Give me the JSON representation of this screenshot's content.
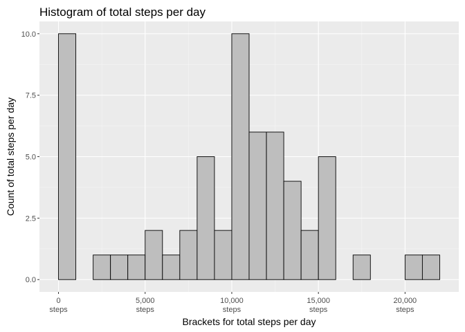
{
  "chart_data": {
    "type": "bar",
    "title": "Histogram of total steps per day",
    "xlabel": "Brackets for total steps per day",
    "ylabel": "Count of total steps per day",
    "bin_width": 1000,
    "bins": [
      {
        "start": 0,
        "end": 1000,
        "count": 10
      },
      {
        "start": 1000,
        "end": 2000,
        "count": 0
      },
      {
        "start": 2000,
        "end": 3000,
        "count": 1
      },
      {
        "start": 3000,
        "end": 4000,
        "count": 1
      },
      {
        "start": 4000,
        "end": 5000,
        "count": 1
      },
      {
        "start": 5000,
        "end": 6000,
        "count": 2
      },
      {
        "start": 6000,
        "end": 7000,
        "count": 1
      },
      {
        "start": 7000,
        "end": 8000,
        "count": 2
      },
      {
        "start": 8000,
        "end": 9000,
        "count": 5
      },
      {
        "start": 9000,
        "end": 10000,
        "count": 2
      },
      {
        "start": 10000,
        "end": 11000,
        "count": 10
      },
      {
        "start": 11000,
        "end": 12000,
        "count": 6
      },
      {
        "start": 12000,
        "end": 13000,
        "count": 6
      },
      {
        "start": 13000,
        "end": 14000,
        "count": 4
      },
      {
        "start": 14000,
        "end": 15000,
        "count": 2
      },
      {
        "start": 15000,
        "end": 16000,
        "count": 5
      },
      {
        "start": 16000,
        "end": 17000,
        "count": 0
      },
      {
        "start": 17000,
        "end": 18000,
        "count": 1
      },
      {
        "start": 18000,
        "end": 19000,
        "count": 0
      },
      {
        "start": 19000,
        "end": 20000,
        "count": 0
      },
      {
        "start": 20000,
        "end": 21000,
        "count": 1
      },
      {
        "start": 21000,
        "end": 22000,
        "count": 1
      }
    ],
    "xlim": [
      -1100,
      23100
    ],
    "ylim": [
      -0.5,
      10.5
    ],
    "x_ticks": [
      {
        "value": 0,
        "line1": "0",
        "line2": "steps"
      },
      {
        "value": 5000,
        "line1": "5,000",
        "line2": "steps"
      },
      {
        "value": 10000,
        "line1": "10,000",
        "line2": "steps"
      },
      {
        "value": 15000,
        "line1": "15,000",
        "line2": "steps"
      },
      {
        "value": 20000,
        "line1": "20,000",
        "line2": "steps"
      }
    ],
    "y_ticks": [
      {
        "value": 0,
        "label": "0.0"
      },
      {
        "value": 2.5,
        "label": "2.5"
      },
      {
        "value": 5,
        "label": "5.0"
      },
      {
        "value": 7.5,
        "label": "7.5"
      },
      {
        "value": 10,
        "label": "10.0"
      }
    ],
    "grid": true,
    "colors": {
      "panel_background": "#ebebeb",
      "grid_major": "#ffffff",
      "grid_minor": "#f5f5f5",
      "bar_fill": "#bebebe",
      "bar_stroke": "#000000",
      "tick_mark": "#333333"
    }
  }
}
